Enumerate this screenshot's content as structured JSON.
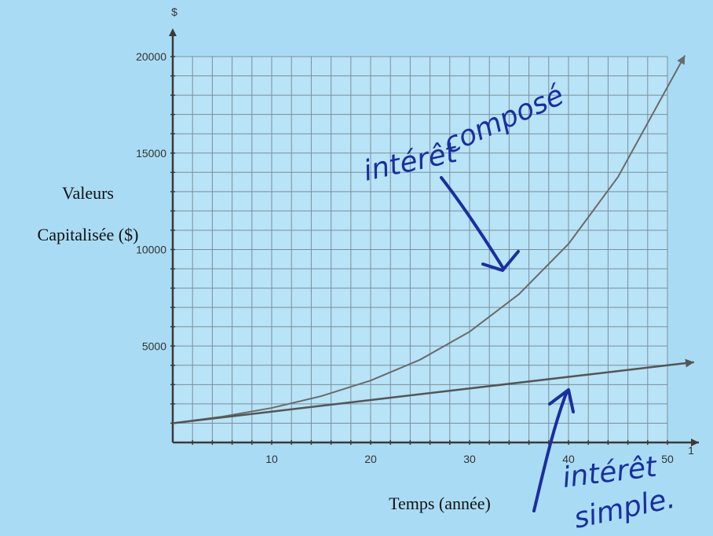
{
  "chart_data": {
    "type": "line",
    "x_unit_label": "1",
    "y_unit_label": "$",
    "ylabel_lines": [
      "Valeurs",
      "Capitalisée ($)"
    ],
    "xlabel": "Temps (année)",
    "xlim": [
      0,
      50
    ],
    "ylim": [
      0,
      20000
    ],
    "x_ticks": [
      10,
      20,
      30,
      40,
      50
    ],
    "y_ticks": [
      5000,
      10000,
      15000,
      20000
    ],
    "x_minor_step": 2,
    "y_minor_step": 1000,
    "grid": true,
    "series": [
      {
        "x": [
          0,
          5,
          10,
          15,
          20,
          25,
          30,
          35,
          40,
          45,
          50
        ],
        "y": [
          1000,
          1340,
          1790,
          2400,
          3210,
          4290,
          5740,
          7690,
          10290,
          13760,
          18420
        ],
        "color": "#6a6a6a"
      },
      {
        "x": [
          0,
          10,
          20,
          30,
          40,
          50
        ],
        "y": [
          1000,
          1600,
          2200,
          2800,
          3400,
          4000
        ],
        "color": "#555555"
      }
    ],
    "annotations": [
      {
        "text_lines": [
          "intérêt",
          "composé"
        ],
        "color": "#1a2fa0"
      },
      {
        "text_lines": [
          "intérêt",
          "simple."
        ],
        "color": "#1a2fa0"
      }
    ]
  }
}
